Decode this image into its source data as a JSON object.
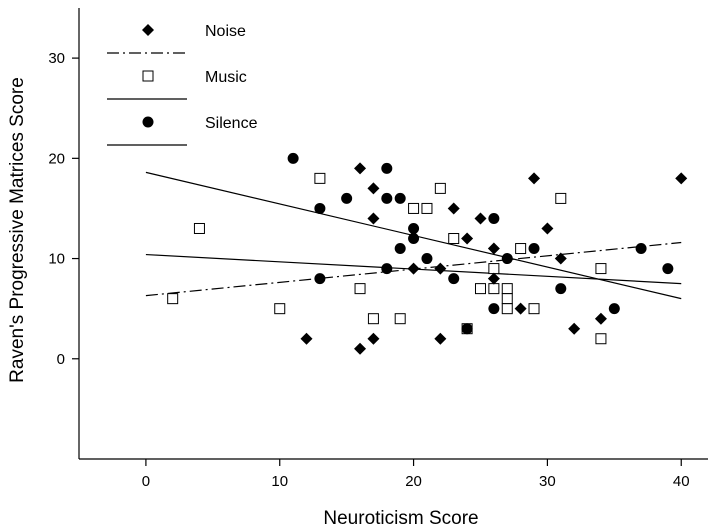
{
  "chart_data": {
    "type": "scatter",
    "xlabel": "Neuroticism Score",
    "ylabel": "Raven's Progressive Matrices Score",
    "xlim": [
      -5,
      42
    ],
    "ylim": [
      -10,
      35
    ],
    "xticks": [
      "0",
      "10",
      "20",
      "30",
      "40"
    ],
    "yticks": [
      "0",
      "10",
      "20",
      "30"
    ],
    "legend_position": "top-left",
    "series": [
      {
        "name": "Noise",
        "marker": "diamond-filled",
        "line_style": "dash-dot",
        "points": [
          [
            12,
            2
          ],
          [
            16,
            19
          ],
          [
            16,
            1
          ],
          [
            17,
            17
          ],
          [
            17,
            14
          ],
          [
            17,
            2
          ],
          [
            20,
            9
          ],
          [
            22,
            9
          ],
          [
            22,
            2
          ],
          [
            23,
            15
          ],
          [
            24,
            12
          ],
          [
            25,
            14
          ],
          [
            26,
            11
          ],
          [
            26,
            8
          ],
          [
            28,
            5
          ],
          [
            29,
            18
          ],
          [
            30,
            13
          ],
          [
            31,
            10
          ],
          [
            32,
            3
          ],
          [
            34,
            4
          ],
          [
            40,
            18
          ]
        ],
        "fit": [
          [
            0,
            6.3
          ],
          [
            40,
            11.6
          ]
        ]
      },
      {
        "name": "Music",
        "marker": "square-open",
        "line_style": "solid",
        "points": [
          [
            2,
            6
          ],
          [
            4,
            13
          ],
          [
            10,
            5
          ],
          [
            13,
            18
          ],
          [
            16,
            7
          ],
          [
            17,
            4
          ],
          [
            19,
            4
          ],
          [
            20,
            15
          ],
          [
            21,
            15
          ],
          [
            22,
            17
          ],
          [
            23,
            12
          ],
          [
            24,
            3
          ],
          [
            25,
            7
          ],
          [
            26,
            9
          ],
          [
            26,
            7
          ],
          [
            27,
            7
          ],
          [
            27,
            6
          ],
          [
            27,
            5
          ],
          [
            28,
            11
          ],
          [
            29,
            5
          ],
          [
            31,
            16
          ],
          [
            34,
            9
          ],
          [
            34,
            2
          ]
        ],
        "fit": [
          [
            0,
            10.4
          ],
          [
            40,
            7.5
          ]
        ]
      },
      {
        "name": "Silence",
        "marker": "circle-filled",
        "line_style": "solid",
        "points": [
          [
            11,
            20
          ],
          [
            13,
            15
          ],
          [
            13,
            8
          ],
          [
            15,
            16
          ],
          [
            18,
            19
          ],
          [
            18,
            16
          ],
          [
            18,
            9
          ],
          [
            19,
            16
          ],
          [
            19,
            11
          ],
          [
            20,
            13
          ],
          [
            20,
            12
          ],
          [
            21,
            10
          ],
          [
            23,
            8
          ],
          [
            24,
            3
          ],
          [
            26,
            14
          ],
          [
            26,
            5
          ],
          [
            27,
            10
          ],
          [
            29,
            11
          ],
          [
            31,
            7
          ],
          [
            35,
            5
          ],
          [
            37,
            11
          ],
          [
            39,
            9
          ]
        ],
        "fit": [
          [
            0,
            18.6
          ],
          [
            40,
            6
          ]
        ]
      }
    ]
  }
}
